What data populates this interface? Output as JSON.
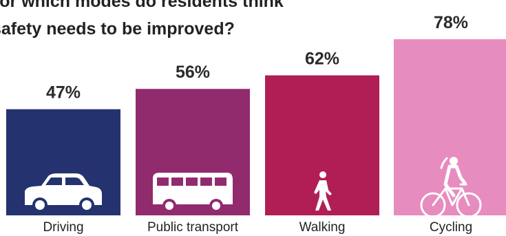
{
  "chart_data": {
    "type": "bar",
    "title_lines": [
      "For which modes do residents think",
      "safety needs to be improved?"
    ],
    "categories": [
      "Driving",
      "Public transport",
      "Walking",
      "Cycling"
    ],
    "values": [
      47,
      56,
      62,
      78
    ],
    "value_labels": [
      "47%",
      "56%",
      "62%",
      "78%"
    ],
    "icons": [
      "car-icon",
      "bus-icon",
      "pedestrian-icon",
      "bicycle-icon"
    ],
    "colors": [
      "#24326f",
      "#922b6e",
      "#b01e55",
      "#e78cbf"
    ],
    "ylim": [
      0,
      100
    ],
    "grid": false,
    "legend": "none"
  }
}
